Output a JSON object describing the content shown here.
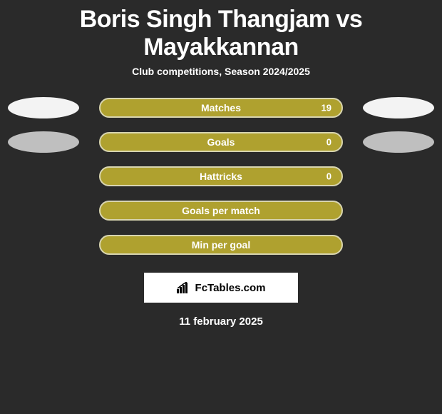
{
  "title": "Boris Singh Thangjam vs Mayakkannan",
  "subtitle": "Club competitions, Season 2024/2025",
  "colors": {
    "background": "#2a2a2a",
    "pill_bg": "#afa12f",
    "pill_border": "#d8d5b0",
    "ellipse_light": "#f3f3f3",
    "ellipse_grey": "#bfbfbf",
    "text": "#ffffff"
  },
  "rows": [
    {
      "label": "Matches",
      "value": "19",
      "left_ellipse": "#f3f3f3",
      "right_ellipse": "#f3f3f3"
    },
    {
      "label": "Goals",
      "value": "0",
      "left_ellipse": "#bfbfbf",
      "right_ellipse": "#bfbfbf"
    },
    {
      "label": "Hattricks",
      "value": "0",
      "left_ellipse": null,
      "right_ellipse": null
    },
    {
      "label": "Goals per match",
      "value": "",
      "left_ellipse": null,
      "right_ellipse": null
    },
    {
      "label": "Min per goal",
      "value": "",
      "left_ellipse": null,
      "right_ellipse": null
    }
  ],
  "footer_brand": "FcTables.com",
  "date": "11 february 2025",
  "layout": {
    "pill_width": 342,
    "pill_height": 28,
    "pill_radius": 14,
    "ellipse_width": 100,
    "ellipse_height": 30
  }
}
